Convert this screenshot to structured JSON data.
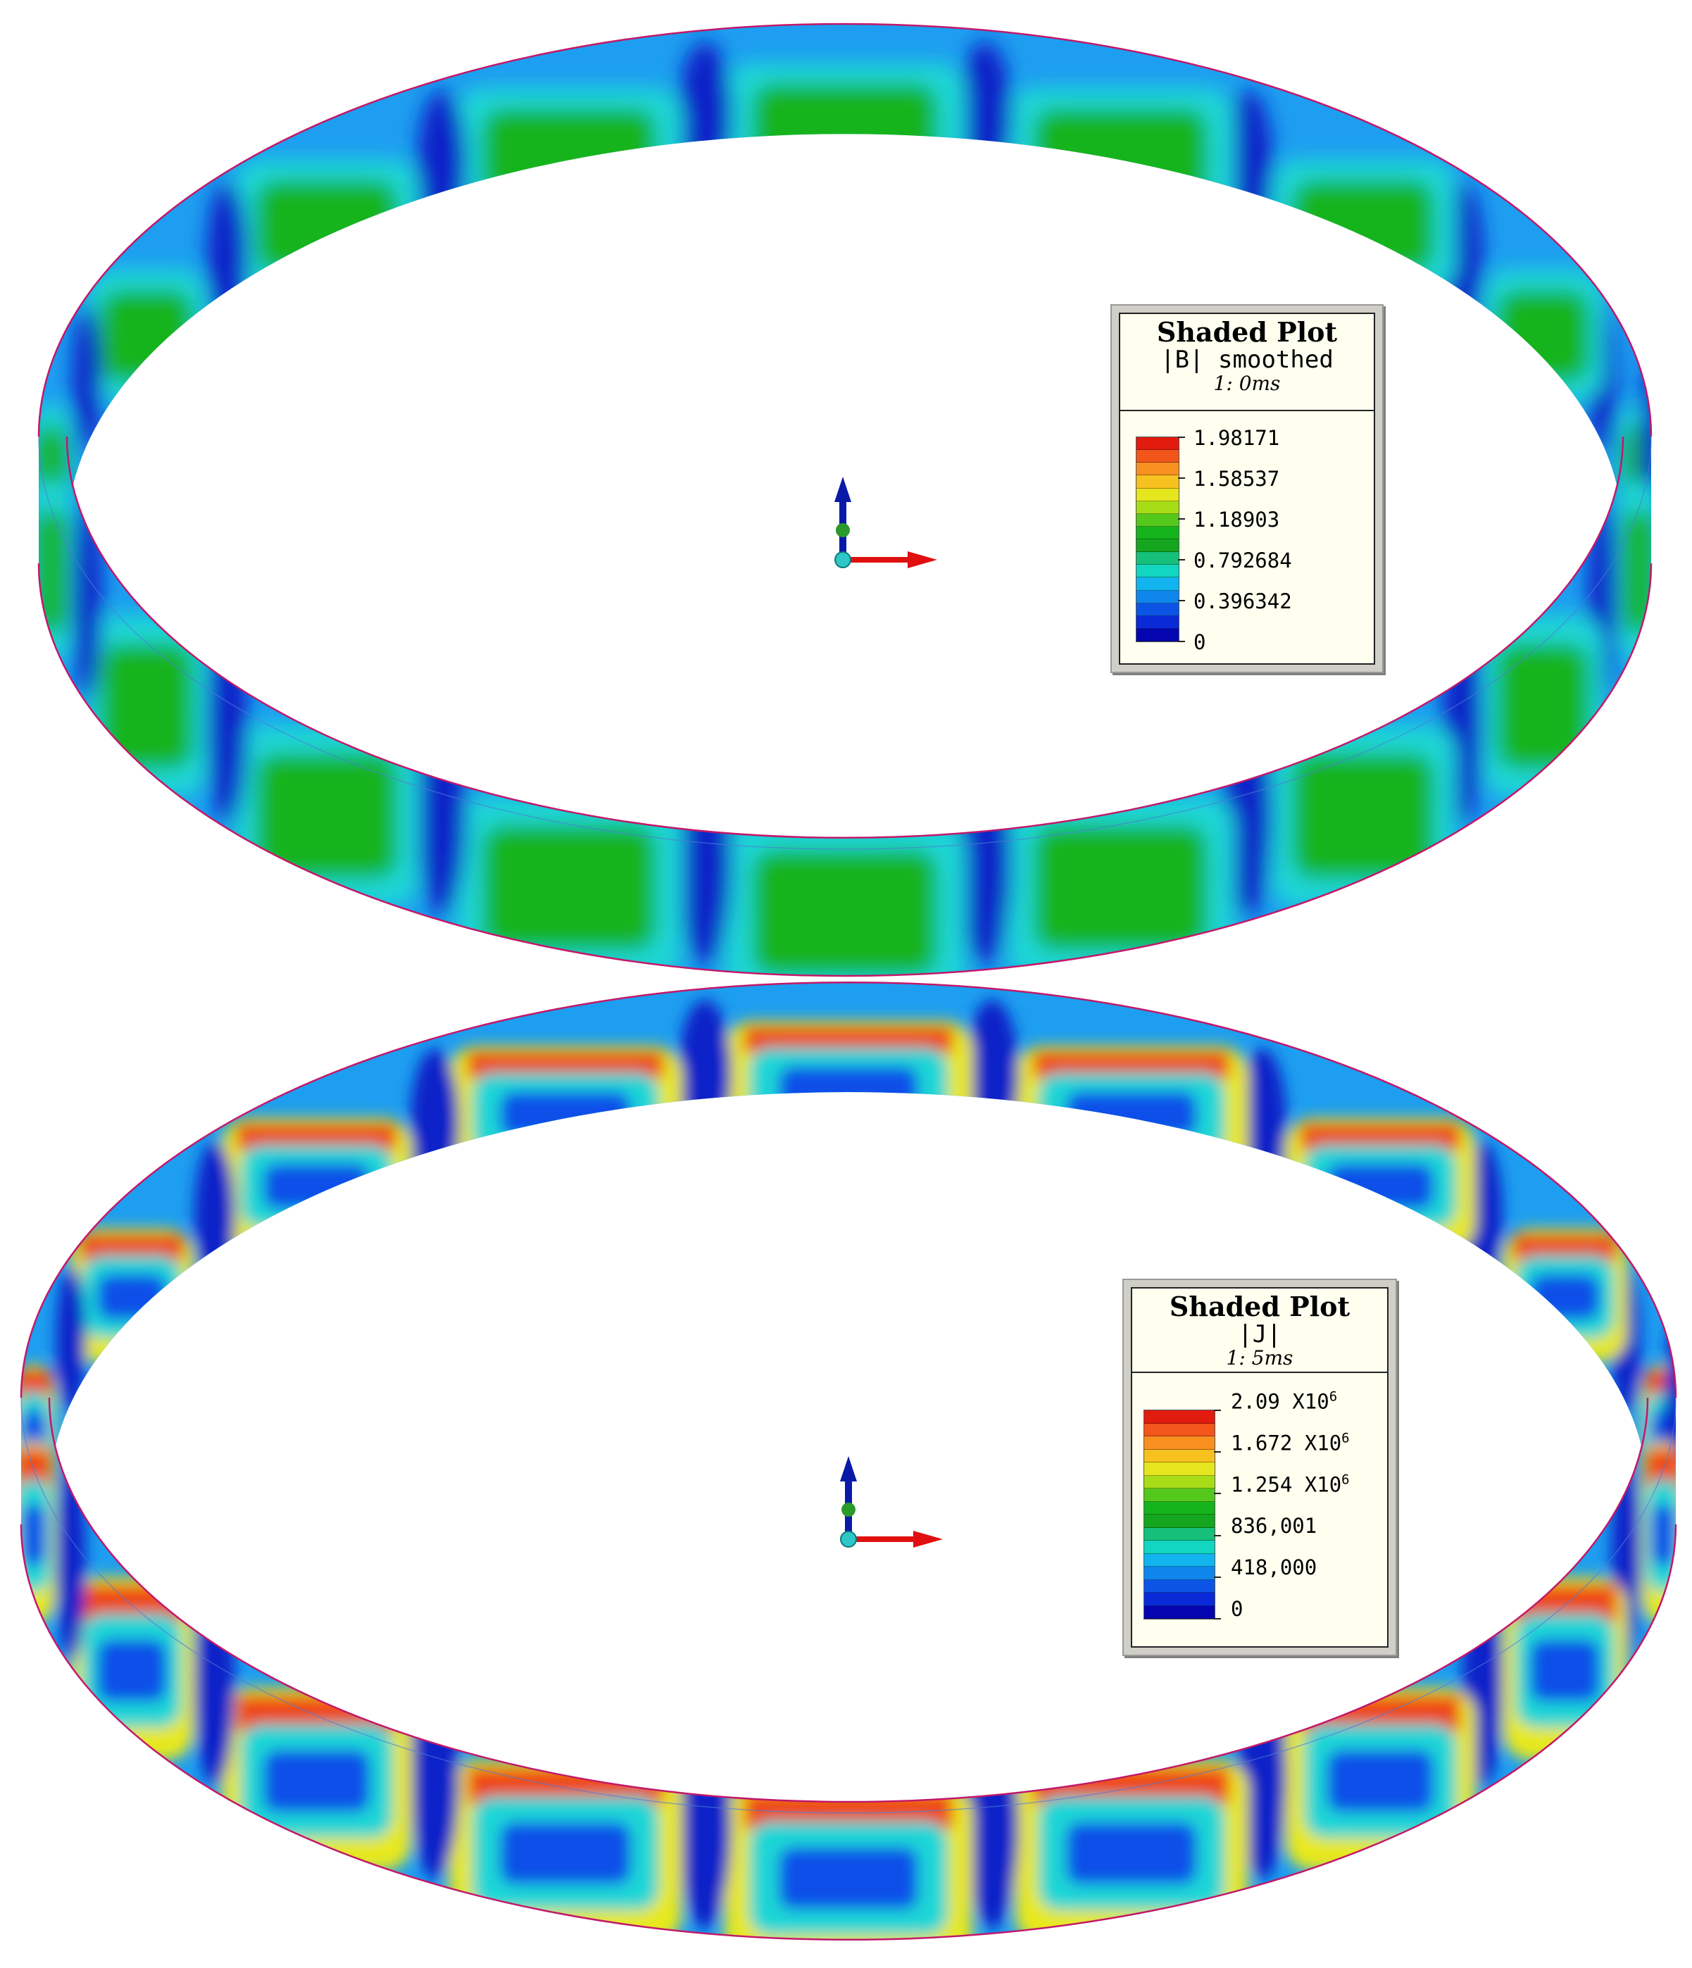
{
  "figures": [
    {
      "legend": {
        "title": "Shaded Plot",
        "quantity": "|B| smoothed",
        "step": "1: 0ms",
        "levels": [
          "1.98171",
          "1.58537",
          "1.18903",
          "0.792684",
          "0.396342",
          "0"
        ]
      }
    },
    {
      "legend": {
        "title": "Shaded Plot",
        "quantity": "|J|",
        "step": "1: 5ms",
        "levels": [
          {
            "mantissa": "2.09",
            "times": "X10",
            "exp": "6"
          },
          {
            "mantissa": "1.672",
            "times": "X10",
            "exp": "6"
          },
          {
            "mantissa": "1.254",
            "times": "X10",
            "exp": "6"
          },
          {
            "mantissa": "836,001",
            "times": "",
            "exp": ""
          },
          {
            "mantissa": "418,000",
            "times": "",
            "exp": ""
          },
          {
            "mantissa": "0",
            "times": "",
            "exp": ""
          }
        ]
      }
    }
  ],
  "colorbar": [
    "#e21b0f",
    "#f2561a",
    "#f7901f",
    "#f7c21f",
    "#e6e61e",
    "#a6dd17",
    "#54c91c",
    "#16b41c",
    "#15a61f",
    "#16c07a",
    "#12d6c0",
    "#11b4ee",
    "#0f86ec",
    "#0c54e6",
    "#0a2ad8",
    "#0505b0"
  ],
  "colors": {
    "green": "#19b41e",
    "cyan": "#1ad6d6",
    "lightblue": "#1e9ef0",
    "blue": "#0c50e8",
    "darkblue": "#0a20c8",
    "red": "#ee2a14",
    "orange": "#f7901f",
    "yellow": "#e8e81e",
    "edge": "#c2186a"
  },
  "icons": {
    "axis_triad": "axis-triad-icon"
  }
}
